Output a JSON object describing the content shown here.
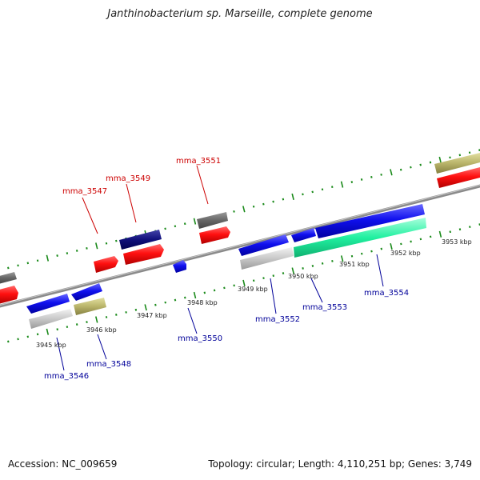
{
  "title": "Janthinobacterium sp. Marseille, complete genome",
  "footer": {
    "accession": "Accession: NC_009659",
    "summary": "Topology: circular; Length: 4,110,251 bp; Genes: 3,749"
  },
  "scale_labels": [
    "3945 kbp",
    "3946 kbp",
    "3947 kbp",
    "3948 kbp",
    "3949 kbp",
    "3950 kbp",
    "3951 kbp",
    "3952 kbp",
    "3953 kbp"
  ],
  "gene_labels_top": [
    "mma_3547",
    "mma_3549",
    "mma_3551"
  ],
  "gene_labels_bottom": [
    "mma_3546",
    "mma_3548",
    "mma_3550",
    "mma_3552",
    "mma_3553",
    "mma_3554"
  ],
  "colors": {
    "top_label": "#cc0000",
    "bottom_label": "#000099",
    "tick": "#1a8a1a",
    "backbone": "#888888"
  }
}
